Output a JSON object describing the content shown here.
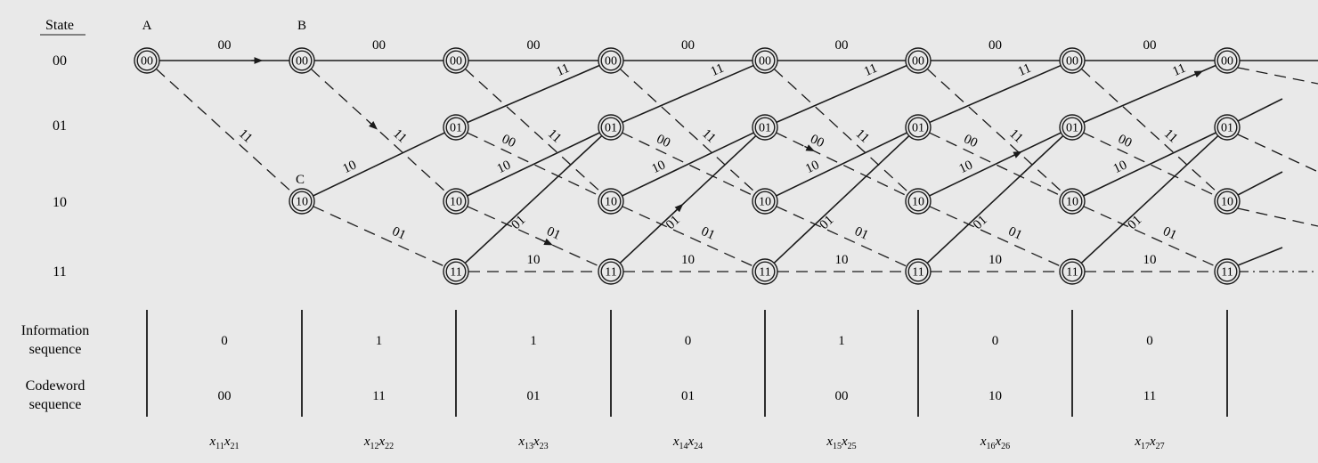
{
  "header": {
    "state_heading": "State"
  },
  "states": [
    "00",
    "01",
    "10",
    "11"
  ],
  "corner_labels": {
    "A": "A",
    "B": "B",
    "C": "C"
  },
  "transitions": {
    "s00_to_00": "00",
    "s00_to_10": "11",
    "s01_to_00": "11",
    "s01_to_10": "00",
    "s10_to_01": "10",
    "s10_to_11": "01",
    "s11_to_01": "01",
    "s11_to_11": "10"
  },
  "table": {
    "info_label": [
      "Information",
      "sequence"
    ],
    "code_label": [
      "Codeword",
      "sequence"
    ],
    "information": [
      "0",
      "1",
      "1",
      "0",
      "1",
      "0",
      "0"
    ],
    "codeword": [
      "00",
      "11",
      "01",
      "01",
      "00",
      "10",
      "11"
    ],
    "x_labels": [
      {
        "a": "x",
        "as": "11",
        "b": "x",
        "bs": "21"
      },
      {
        "a": "x",
        "as": "12",
        "b": "x",
        "bs": "22"
      },
      {
        "a": "x",
        "as": "13",
        "b": "x",
        "bs": "23"
      },
      {
        "a": "x",
        "as": "14",
        "b": "x",
        "bs": "24"
      },
      {
        "a": "x",
        "as": "15",
        "b": "x",
        "bs": "25"
      },
      {
        "a": "x",
        "as": "16",
        "b": "x",
        "bs": "26"
      },
      {
        "a": "x",
        "as": "17",
        "b": "x",
        "bs": "27"
      }
    ]
  }
}
